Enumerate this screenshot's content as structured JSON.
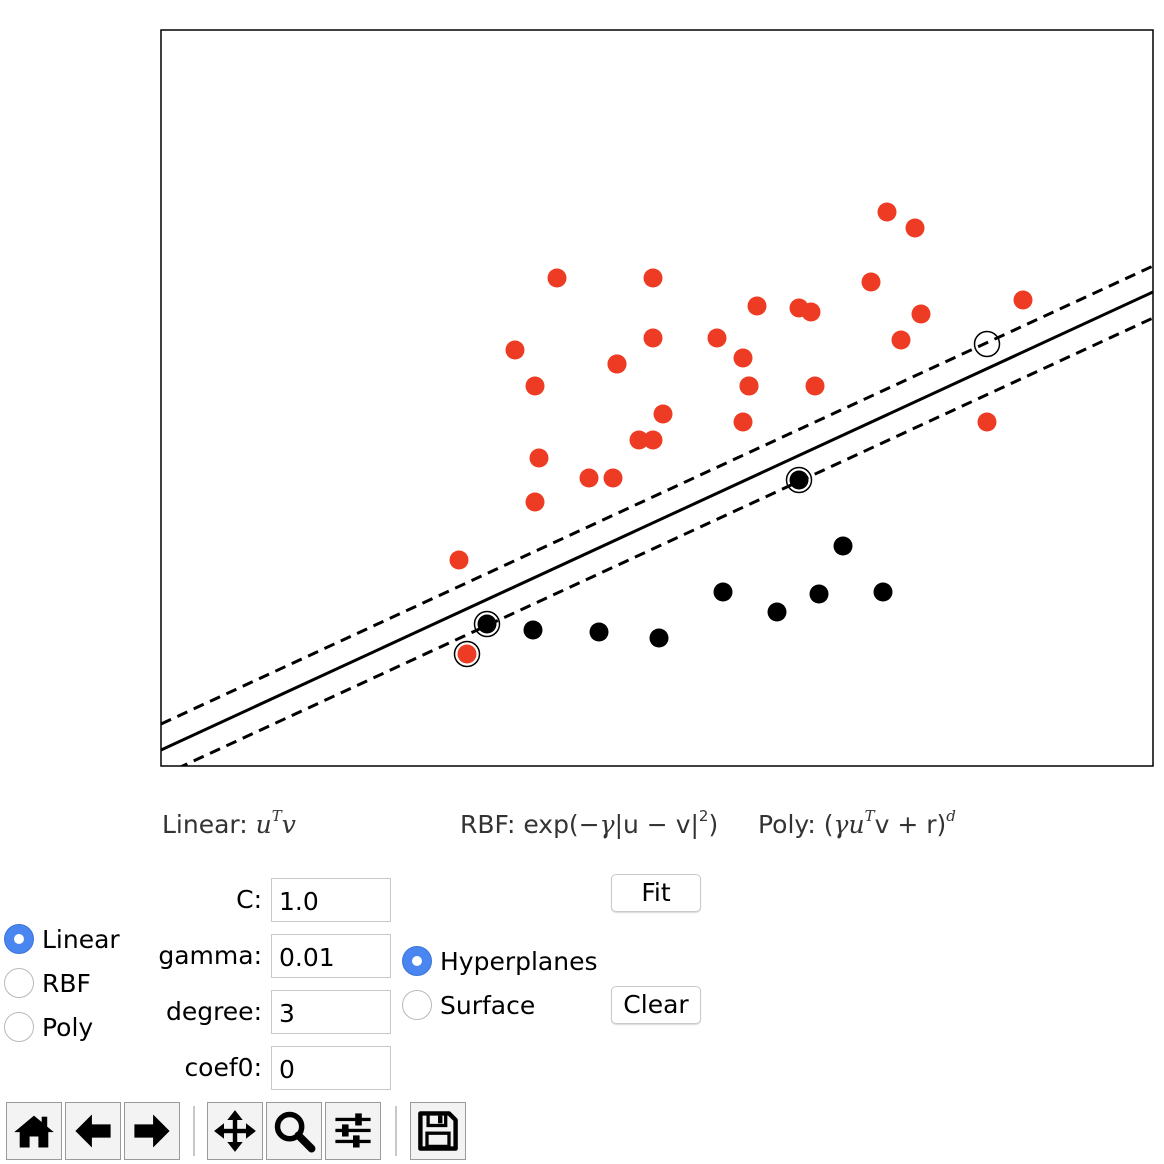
{
  "formulas": {
    "linear_prefix": "Linear: ",
    "rbf_prefix": "RBF: exp(−",
    "rbf_mid": "|u − v|",
    "rbf_suffix": ")",
    "poly_prefix": "Poly: (",
    "poly_mid": "u",
    "poly_suffix": "v + r)",
    "sup_T": "T",
    "sup_2": "2",
    "sup_d": "d"
  },
  "kernel_options": [
    {
      "label": "Linear",
      "selected": true
    },
    {
      "label": "RBF",
      "selected": false
    },
    {
      "label": "Poly",
      "selected": false
    }
  ],
  "params": {
    "c_label": "C:",
    "c_value": "1.0",
    "gamma_label": "gamma:",
    "gamma_value": "0.01",
    "degree_label": "degree:",
    "degree_value": "3",
    "coef0_label": "coef0:",
    "coef0_value": "0"
  },
  "display_options": [
    {
      "label": "Hyperplanes",
      "selected": true
    },
    {
      "label": "Surface",
      "selected": false
    }
  ],
  "buttons": {
    "fit_label": "Fit",
    "clear_label": "Clear"
  },
  "toolbar": {
    "icons": [
      "home-icon",
      "back-arrow-icon",
      "forward-arrow-icon",
      "pan-icon",
      "zoom-icon",
      "configure-subplots-icon",
      "save-icon"
    ]
  },
  "colors": {
    "class_a": "#ee3b24",
    "class_b": "#000000",
    "radio_accent": "#4a86f0"
  },
  "chart_data": {
    "type": "scatter",
    "xlim": [
      0,
      992
    ],
    "ylim": [
      0,
      736
    ],
    "grid": false,
    "series": [
      {
        "color": "#ee3b24",
        "points": [
          [
            726,
            554
          ],
          [
            754,
            538
          ],
          [
            396,
            488
          ],
          [
            492,
            488
          ],
          [
            596,
            460
          ],
          [
            650,
            454
          ],
          [
            710,
            484
          ],
          [
            638,
            458
          ],
          [
            354,
            416
          ],
          [
            556,
            428
          ],
          [
            456,
            402
          ],
          [
            492,
            428
          ],
          [
            582,
            408
          ],
          [
            588,
            380
          ],
          [
            740,
            426
          ],
          [
            760,
            452
          ],
          [
            862,
            466
          ],
          [
            374,
            380
          ],
          [
            456,
            402
          ],
          [
            654,
            380
          ],
          [
            588,
            380
          ],
          [
            492,
            326
          ],
          [
            374,
            264
          ],
          [
            502,
            352
          ],
          [
            582,
            344
          ],
          [
            478,
            326
          ],
          [
            428,
            288
          ],
          [
            452,
            288
          ],
          [
            378,
            308
          ],
          [
            298,
            206
          ],
          [
            826,
            344
          ],
          [
            306,
            112
          ]
        ]
      },
      {
        "color": "#000000",
        "points": [
          [
            682,
            220
          ],
          [
            722,
            174
          ],
          [
            658,
            172
          ],
          [
            616,
            154
          ],
          [
            562,
            174
          ],
          [
            498,
            128
          ],
          [
            438,
            134
          ],
          [
            372,
            136
          ],
          [
            326,
            142
          ],
          [
            638,
            286
          ]
        ]
      }
    ],
    "support_vectors": [
      [
        826,
        422
      ],
      [
        638,
        286
      ],
      [
        306,
        112
      ],
      [
        326,
        142
      ]
    ],
    "decision_line": [
      [
        0,
        16
      ],
      [
        992,
        474
      ]
    ],
    "margin_lines": [
      [
        [
          0,
          42
        ],
        [
          992,
          500
        ]
      ],
      [
        [
          0,
          -10
        ],
        [
          992,
          448
        ]
      ]
    ]
  }
}
